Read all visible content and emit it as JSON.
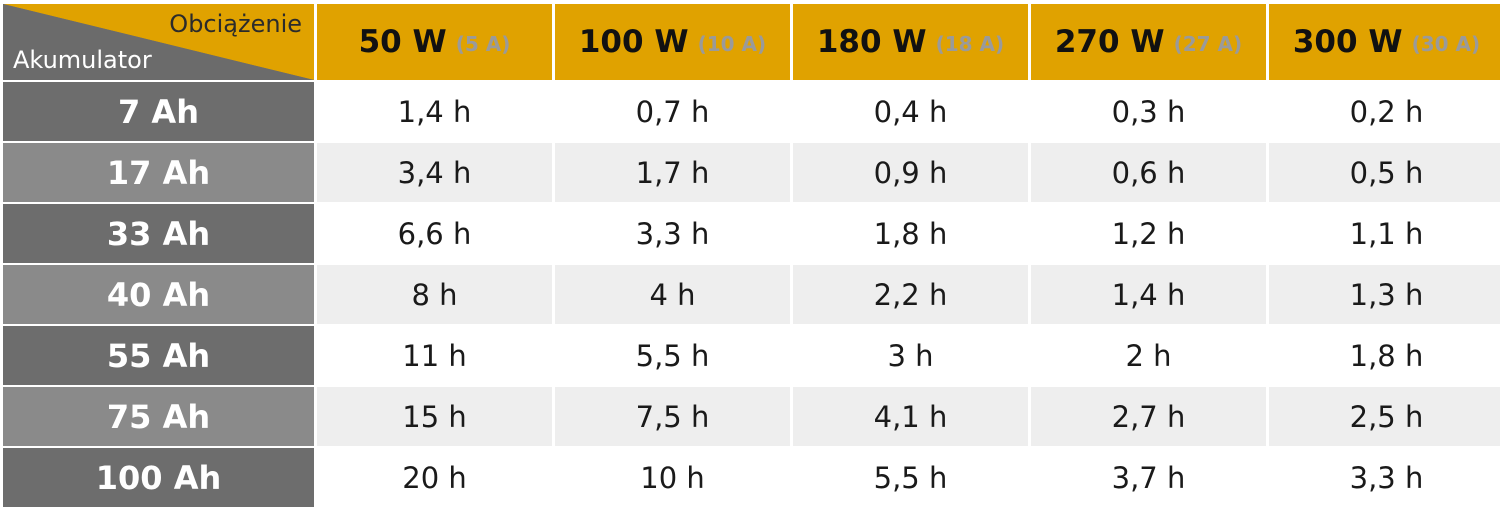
{
  "table": {
    "corner": {
      "top_label": "Obciążenie",
      "bottom_label": "Akumulator"
    },
    "columns": [
      {
        "watt": "50 W",
        "amp": "(5 A)"
      },
      {
        "watt": "100 W",
        "amp": "(10 A)"
      },
      {
        "watt": "180 W",
        "amp": "(18 A)"
      },
      {
        "watt": "270 W",
        "amp": "(27 A)"
      },
      {
        "watt": "300 W",
        "amp": "(30 A)"
      }
    ],
    "rows": [
      {
        "label": "7 Ah",
        "values": [
          "1,4 h",
          "0,7 h",
          "0,4 h",
          "0,3 h",
          "0,2 h"
        ]
      },
      {
        "label": "17 Ah",
        "values": [
          "3,4 h",
          "1,7 h",
          "0,9 h",
          "0,6 h",
          "0,5 h"
        ]
      },
      {
        "label": "33 Ah",
        "values": [
          "6,6 h",
          "3,3 h",
          "1,8 h",
          "1,2 h",
          "1,1 h"
        ]
      },
      {
        "label": "40 Ah",
        "values": [
          "8 h",
          "4 h",
          "2,2 h",
          "1,4 h",
          "1,3 h"
        ]
      },
      {
        "label": "55 Ah",
        "values": [
          "11 h",
          "5,5 h",
          "3 h",
          "2 h",
          "1,8 h"
        ]
      },
      {
        "label": "75 Ah",
        "values": [
          "15 h",
          "7,5 h",
          "4,1 h",
          "2,7 h",
          "2,5 h"
        ]
      },
      {
        "label": "100 Ah",
        "values": [
          "20 h",
          "10 h",
          "5,5 h",
          "3,7 h",
          "3,3 h"
        ]
      }
    ]
  },
  "colors": {
    "header_accent": "#e0a200",
    "row_header_dark": "#6d6d6d",
    "row_header_light": "#8a8a8a",
    "cell_alt": "#eeeeee"
  }
}
